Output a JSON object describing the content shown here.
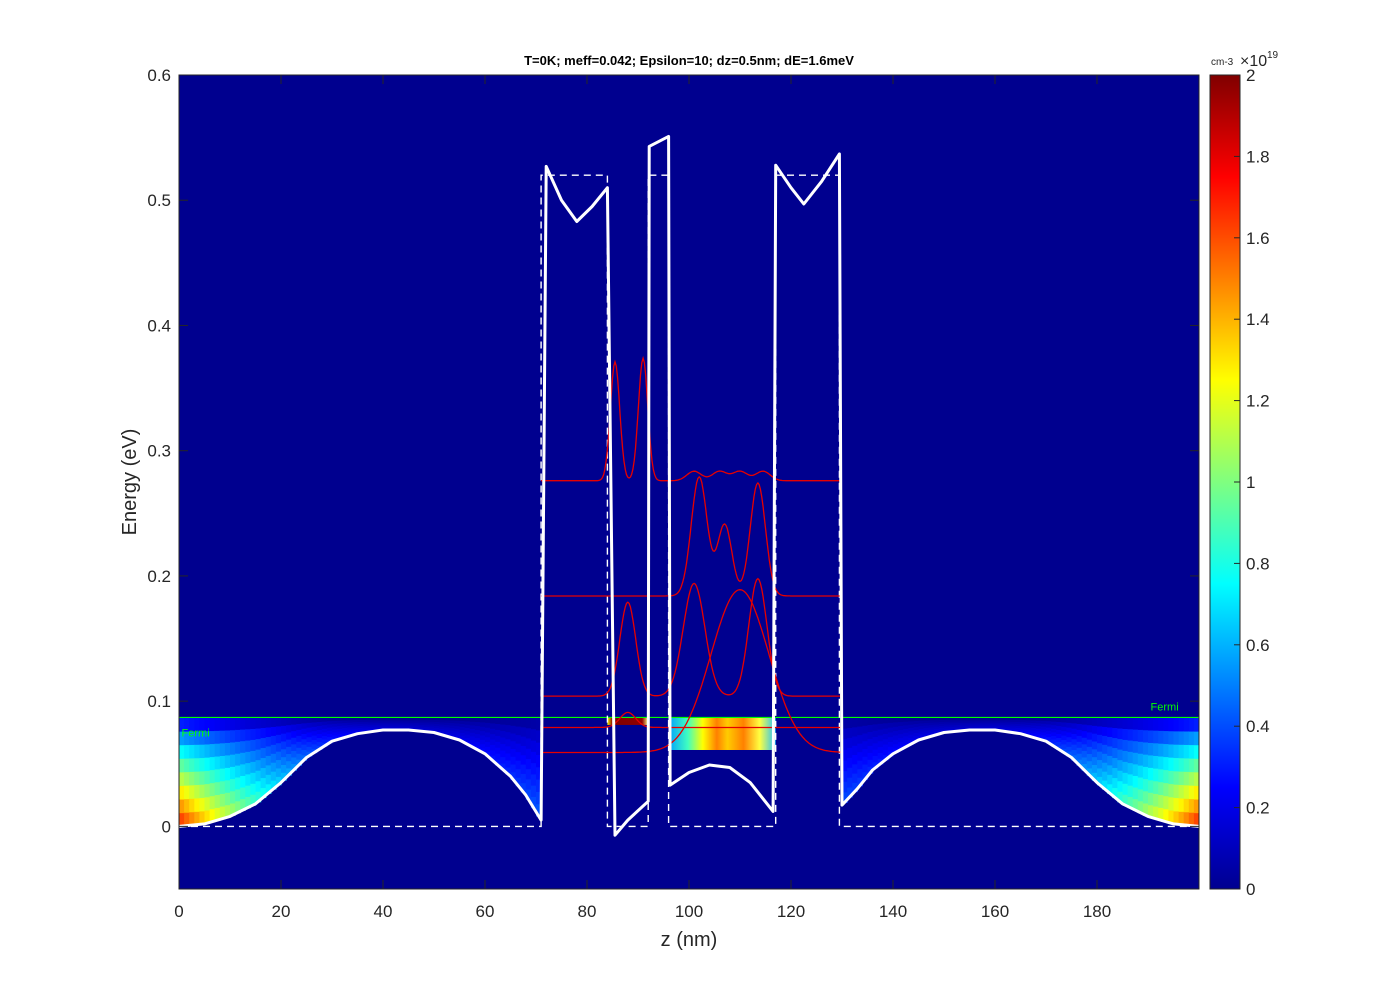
{
  "chart_data": {
    "type": "heatmap",
    "title": "T=0K; meff=0.042; Epsilon=10; dz=0.5nm; dE=1.6meV",
    "xlabel": "z (nm)",
    "ylabel": "Energy (eV)",
    "xlim": [
      0,
      200
    ],
    "ylim": [
      -0.05,
      0.6
    ],
    "xticks": [
      0,
      20,
      40,
      60,
      80,
      100,
      120,
      140,
      160,
      180
    ],
    "yticks": [
      0,
      0.1,
      0.2,
      0.3,
      0.4,
      0.5,
      0.6
    ],
    "xtick_labels": [
      "0",
      "20",
      "40",
      "60",
      "80",
      "100",
      "120",
      "140",
      "160",
      "180"
    ],
    "ytick_labels": [
      "0",
      "0.1",
      "0.2",
      "0.3",
      "0.4",
      "0.5",
      "0.6"
    ],
    "colorbar": {
      "unit": "cm-3",
      "multiplier": "×10",
      "exponent": "19",
      "range": [
        0,
        2
      ],
      "ticks": [
        0,
        0.2,
        0.4,
        0.6,
        0.8,
        1,
        1.2,
        1.4,
        1.6,
        1.8,
        2
      ],
      "tick_labels": [
        "0",
        "0.2",
        "0.4",
        "0.6",
        "0.8",
        "1",
        "1.2",
        "1.4",
        "1.6",
        "1.8",
        "2"
      ],
      "colormap": "jet"
    },
    "fermi_level": 0.087,
    "fermi_label": "Fermi",
    "background_color": "#00008f",
    "band_profile": {
      "name": "self-consistent conduction band",
      "color": "#ffffff",
      "points": [
        [
          0,
          0.0
        ],
        [
          5,
          0.002
        ],
        [
          10,
          0.008
        ],
        [
          15,
          0.018
        ],
        [
          20,
          0.035
        ],
        [
          25,
          0.055
        ],
        [
          30,
          0.068
        ],
        [
          35,
          0.074
        ],
        [
          40,
          0.077
        ],
        [
          45,
          0.077
        ],
        [
          50,
          0.075
        ],
        [
          55,
          0.069
        ],
        [
          60,
          0.058
        ],
        [
          65,
          0.04
        ],
        [
          68,
          0.025
        ],
        [
          71,
          0.005
        ],
        [
          71,
          0.005
        ],
        [
          72,
          0.527
        ],
        [
          75,
          0.5
        ],
        [
          78,
          0.483
        ],
        [
          81,
          0.495
        ],
        [
          84,
          0.51
        ],
        [
          84,
          0.51
        ],
        [
          85.5,
          -0.007
        ],
        [
          88,
          0.005
        ],
        [
          92,
          0.02
        ],
        [
          92,
          0.02
        ],
        [
          92.2,
          0.543
        ],
        [
          96,
          0.551
        ],
        [
          96,
          0.551
        ],
        [
          96.3,
          0.033
        ],
        [
          100,
          0.043
        ],
        [
          104,
          0.049
        ],
        [
          108,
          0.047
        ],
        [
          112,
          0.035
        ],
        [
          116.5,
          0.012
        ],
        [
          116.5,
          0.012
        ],
        [
          117,
          0.528
        ],
        [
          120,
          0.51
        ],
        [
          122.5,
          0.497
        ],
        [
          126,
          0.515
        ],
        [
          129.5,
          0.537
        ],
        [
          129.5,
          0.537
        ],
        [
          130,
          0.017
        ],
        [
          133,
          0.03
        ],
        [
          136,
          0.045
        ],
        [
          140,
          0.058
        ],
        [
          145,
          0.069
        ],
        [
          150,
          0.075
        ],
        [
          155,
          0.077
        ],
        [
          160,
          0.077
        ],
        [
          165,
          0.074
        ],
        [
          170,
          0.068
        ],
        [
          175,
          0.055
        ],
        [
          180,
          0.035
        ],
        [
          185,
          0.018
        ],
        [
          190,
          0.008
        ],
        [
          195,
          0.002
        ],
        [
          200,
          0.0
        ]
      ]
    },
    "flat_band_profile": {
      "name": "unbiased band edge",
      "color": "#ffffff",
      "style": "dashed",
      "points": [
        [
          0,
          0
        ],
        [
          71,
          0
        ],
        [
          71,
          0.52
        ],
        [
          84,
          0.52
        ],
        [
          84,
          0
        ],
        [
          92,
          0
        ],
        [
          92,
          0.52
        ],
        [
          96,
          0.52
        ],
        [
          96,
          0
        ],
        [
          117,
          0
        ],
        [
          117,
          0.52
        ],
        [
          129.5,
          0.52
        ],
        [
          129.5,
          0
        ],
        [
          200,
          0
        ]
      ]
    },
    "wavefunctions": [
      {
        "name": "psi1",
        "energy": 0.059,
        "color": "#e60000"
      },
      {
        "name": "psi2",
        "energy": 0.079,
        "color": "#e60000"
      },
      {
        "name": "psi3",
        "energy": 0.104,
        "color": "#e60000"
      },
      {
        "name": "psi4",
        "energy": 0.184,
        "color": "#e60000"
      },
      {
        "name": "psi5",
        "energy": 0.276,
        "color": "#e60000"
      }
    ],
    "density_regions": [
      {
        "name": "left contact",
        "z": [
          0,
          71
        ],
        "e_range": [
          0,
          0.087
        ],
        "peak": 1.7
      },
      {
        "name": "right contact",
        "z": [
          130,
          200
        ],
        "e_range": [
          0,
          0.087
        ],
        "peak": 1.7
      },
      {
        "name": "narrow well",
        "z": [
          84,
          92
        ],
        "e_range": [
          0.081,
          0.087
        ],
        "peak": 2.0
      },
      {
        "name": "wide well",
        "z": [
          96,
          117
        ],
        "e_range": [
          0.061,
          0.087
        ],
        "peak": 1.5
      }
    ]
  }
}
